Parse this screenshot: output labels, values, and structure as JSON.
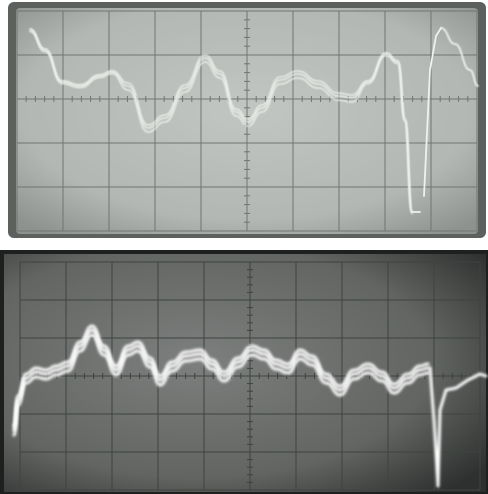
{
  "image": {
    "kind": "oscilloscope-photographs",
    "panels": [
      {
        "id": "top",
        "phosphor_color": "#e8ece6",
        "background_color": "#b8bcb8",
        "grid_color": "#6f7470",
        "grid": {
          "columns": 10,
          "rows": 5
        }
      },
      {
        "id": "bottom",
        "phosphor_color": "#ffffff",
        "background_color": "#6e716f",
        "grid_color": "#3e423f",
        "grid": {
          "columns": 10,
          "rows": 6
        }
      }
    ]
  }
}
